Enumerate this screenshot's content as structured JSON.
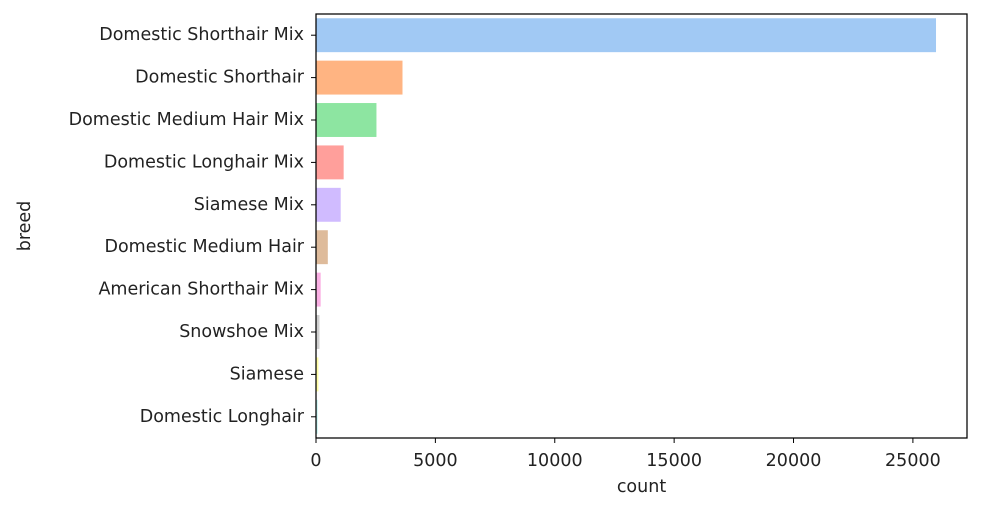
{
  "chart_data": {
    "type": "bar",
    "orientation": "horizontal",
    "title": "",
    "xlabel": "count",
    "ylabel": "breed",
    "categories": [
      "Domestic Shorthair Mix",
      "Domestic Shorthair",
      "Domestic Medium Hair Mix",
      "Domestic Longhair Mix",
      "Siamese Mix",
      "Domestic Medium Hair",
      "American Shorthair Mix",
      "Snowshoe Mix",
      "Siamese",
      "Domestic Longhair"
    ],
    "values": [
      25968,
      3623,
      2532,
      1158,
      1034,
      495,
      196,
      145,
      102,
      66
    ],
    "colors": [
      "#a1c9f4",
      "#ffb482",
      "#8de5a1",
      "#ff9f9b",
      "#d0bbff",
      "#debb9b",
      "#fab0e4",
      "#cfcfcf",
      "#fffea3",
      "#b9f2f0"
    ],
    "xlim": [
      0,
      27266
    ],
    "xticks": [
      0,
      5000,
      10000,
      15000,
      20000,
      25000
    ],
    "grid": false,
    "legend": "none"
  }
}
